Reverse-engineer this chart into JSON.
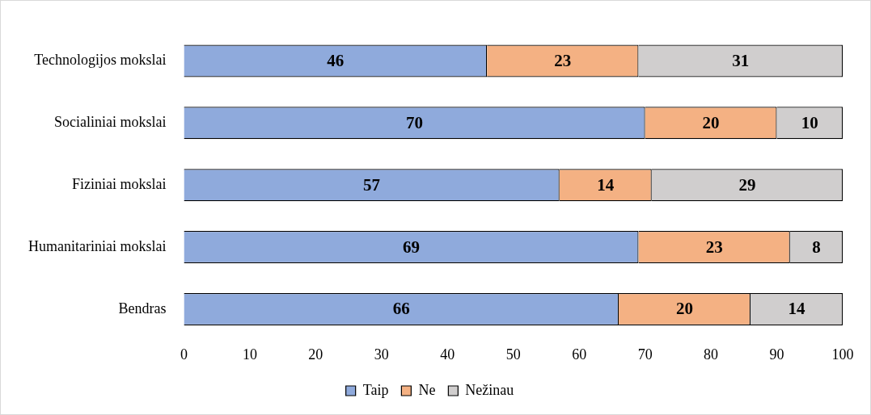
{
  "chart_data": {
    "type": "bar",
    "orientation": "horizontal",
    "stacked": true,
    "data_labels": true,
    "legend": "bottom",
    "categories": [
      "Technologijos mokslai",
      "Socialiniai mokslai",
      "Fiziniai mokslai",
      "Humanitariniai mokslai",
      "Bendras"
    ],
    "xlim": [
      0,
      100
    ],
    "xticks": [
      0,
      10,
      20,
      30,
      40,
      50,
      60,
      70,
      80,
      90,
      100
    ],
    "series": [
      {
        "name": "Taip",
        "color": "#8faadc",
        "values": [
          46,
          70,
          57,
          69,
          66
        ]
      },
      {
        "name": "Ne",
        "color": "#f4b183",
        "values": [
          23,
          20,
          14,
          23,
          20
        ]
      },
      {
        "name": "Nežinau",
        "color": "#d0cece",
        "values": [
          31,
          10,
          29,
          8,
          14
        ]
      }
    ]
  }
}
